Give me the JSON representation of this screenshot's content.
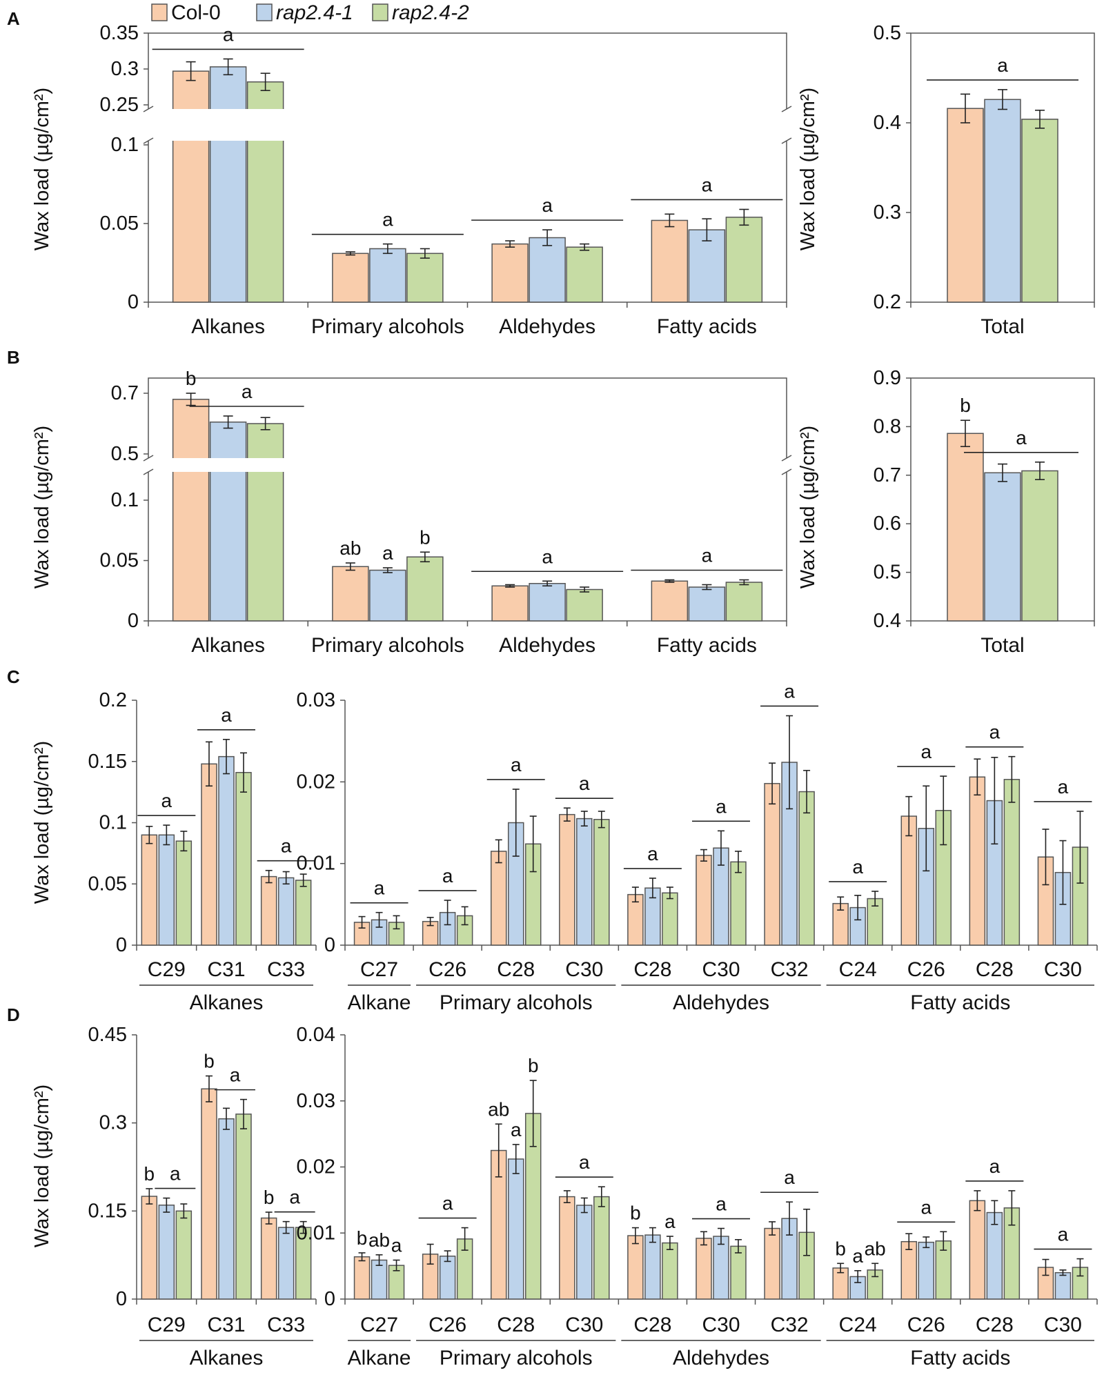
{
  "legend": [
    {
      "label": "Col-0",
      "italic": false,
      "color": "#F9CDAC"
    },
    {
      "label": "rap2.4-1",
      "italic": true,
      "color": "#BDD3EB"
    },
    {
      "label": "rap2.4-2",
      "italic": true,
      "color": "#C6DCA4"
    }
  ],
  "panel_labels": [
    "A",
    "B",
    "C",
    "D"
  ],
  "chart_data": [
    {
      "id": "A-classes",
      "panel": "A",
      "type": "bar",
      "broken_axis": true,
      "ylabel": "Wax load (µg/cm²)",
      "categories": [
        "Alkanes",
        "Primary  alcohols",
        "Aldehydes",
        "Fatty acids"
      ],
      "ylim_lower": [
        0,
        0.1
      ],
      "ylim_upper": [
        0.25,
        0.35
      ],
      "yticks": [
        0,
        0.05,
        0.1,
        0.25,
        0.3,
        0.35
      ],
      "series": [
        {
          "name": "Col-0",
          "values": [
            0.297,
            0.031,
            0.037,
            0.052
          ],
          "errors": [
            0.013,
            0.001,
            0.002,
            0.004
          ]
        },
        {
          "name": "rap2.4-1",
          "values": [
            0.303,
            0.034,
            0.041,
            0.046
          ],
          "errors": [
            0.011,
            0.003,
            0.005,
            0.007
          ]
        },
        {
          "name": "rap2.4-2",
          "values": [
            0.282,
            0.031,
            0.035,
            0.054
          ],
          "errors": [
            0.012,
            0.003,
            0.002,
            0.005
          ]
        }
      ],
      "annotations": [
        {
          "text": "a",
          "category": 0,
          "span": [
            0,
            2
          ]
        },
        {
          "text": "a",
          "category": 1,
          "span": [
            0,
            2
          ]
        },
        {
          "text": "a",
          "category": 2,
          "span": [
            0,
            2
          ]
        },
        {
          "text": "a",
          "category": 3,
          "span": [
            0,
            2
          ]
        }
      ]
    },
    {
      "id": "A-total",
      "panel": "A",
      "type": "bar",
      "ylabel": "Wax load (µg/cm²)",
      "categories": [
        "Total"
      ],
      "ylim": [
        0.2,
        0.5
      ],
      "yticks": [
        0.2,
        0.3,
        0.4,
        0.5
      ],
      "series": [
        {
          "name": "Col-0",
          "values": [
            0.416
          ],
          "errors": [
            0.016
          ]
        },
        {
          "name": "rap2.4-1",
          "values": [
            0.426
          ],
          "errors": [
            0.011
          ]
        },
        {
          "name": "rap2.4-2",
          "values": [
            0.404
          ],
          "errors": [
            0.01
          ]
        }
      ],
      "annotations": [
        {
          "text": "a",
          "category": 0,
          "span": [
            0,
            2
          ]
        }
      ]
    },
    {
      "id": "B-classes",
      "panel": "B",
      "type": "bar",
      "broken_axis": true,
      "ylabel": "Wax load (µg/cm²)",
      "categories": [
        "Alkanes",
        "Primary  alcohols",
        "Aldehydes",
        "Fatty acids"
      ],
      "ylim_lower": [
        0,
        0.12
      ],
      "ylim_upper": [
        0.5,
        0.75
      ],
      "yticks": [
        0,
        0.05,
        0.1,
        0.5,
        0.7
      ],
      "series": [
        {
          "name": "Col-0",
          "values": [
            0.68,
            0.045,
            0.029,
            0.033
          ],
          "errors": [
            0.02,
            0.003,
            0.001,
            0.001
          ]
        },
        {
          "name": "rap2.4-1",
          "values": [
            0.605,
            0.042,
            0.031,
            0.028
          ],
          "errors": [
            0.02,
            0.002,
            0.002,
            0.002
          ]
        },
        {
          "name": "rap2.4-2",
          "values": [
            0.6,
            0.053,
            0.026,
            0.032
          ],
          "errors": [
            0.02,
            0.004,
            0.002,
            0.002
          ]
        }
      ],
      "annotations": [
        {
          "text": "b",
          "category": 0,
          "span": [
            0,
            0
          ]
        },
        {
          "text": "a",
          "category": 0,
          "span": [
            1,
            2
          ]
        },
        {
          "text": "ab",
          "category": 1,
          "span": [
            0,
            0
          ]
        },
        {
          "text": "a",
          "category": 1,
          "span": [
            1,
            1
          ]
        },
        {
          "text": "b",
          "category": 1,
          "span": [
            2,
            2
          ]
        },
        {
          "text": "a",
          "category": 2,
          "span": [
            0,
            2
          ]
        },
        {
          "text": "a",
          "category": 3,
          "span": [
            0,
            2
          ]
        }
      ]
    },
    {
      "id": "B-total",
      "panel": "B",
      "type": "bar",
      "ylabel": "Wax load (µg/cm²)",
      "categories": [
        "Total"
      ],
      "ylim": [
        0.4,
        0.9
      ],
      "yticks": [
        0.4,
        0.5,
        0.6,
        0.7,
        0.8,
        0.9
      ],
      "series": [
        {
          "name": "Col-0",
          "values": [
            0.786
          ],
          "errors": [
            0.027
          ]
        },
        {
          "name": "rap2.4-1",
          "values": [
            0.705
          ],
          "errors": [
            0.018
          ]
        },
        {
          "name": "rap2.4-2",
          "values": [
            0.709
          ],
          "errors": [
            0.018
          ]
        }
      ],
      "annotations": [
        {
          "text": "b",
          "category": 0,
          "span": [
            0,
            0
          ]
        },
        {
          "text": "a",
          "category": 0,
          "span": [
            1,
            2
          ]
        }
      ]
    },
    {
      "id": "C-alkanes",
      "panel": "C",
      "type": "bar",
      "ylabel": "Wax load (µg/cm²)",
      "categories": [
        "C29",
        "C31",
        "C33"
      ],
      "ylim": [
        0,
        0.2
      ],
      "yticks": [
        0,
        0.05,
        0.1,
        0.15,
        0.2
      ],
      "groups": [
        {
          "label": "Alkanes",
          "from": 0,
          "to": 2
        }
      ],
      "series": [
        {
          "name": "Col-0",
          "values": [
            0.09,
            0.148,
            0.056
          ],
          "errors": [
            0.007,
            0.018,
            0.005
          ]
        },
        {
          "name": "rap2.4-1",
          "values": [
            0.09,
            0.154,
            0.055
          ],
          "errors": [
            0.008,
            0.014,
            0.005
          ]
        },
        {
          "name": "rap2.4-2",
          "values": [
            0.085,
            0.141,
            0.053
          ],
          "errors": [
            0.008,
            0.016,
            0.005
          ]
        }
      ],
      "annotations": [
        {
          "text": "a",
          "category": 0,
          "span": [
            0,
            2
          ]
        },
        {
          "text": "a",
          "category": 1,
          "span": [
            0,
            2
          ]
        },
        {
          "text": "a",
          "category": 2,
          "span": [
            0,
            2
          ]
        }
      ]
    },
    {
      "id": "C-others",
      "panel": "C",
      "type": "bar",
      "categories": [
        "C27",
        "C26",
        "C28",
        "C30",
        "C28",
        "C30",
        "C32",
        "C24",
        "C26",
        "C28",
        "C30"
      ],
      "ylim": [
        0,
        0.03
      ],
      "yticks": [
        0,
        0.01,
        0.02,
        0.03
      ],
      "groups": [
        {
          "label": "Alkane",
          "from": 0,
          "to": 0
        },
        {
          "label": "Primary alcohols",
          "from": 1,
          "to": 3
        },
        {
          "label": "Aldehydes",
          "from": 4,
          "to": 6
        },
        {
          "label": "Fatty acids",
          "from": 7,
          "to": 10
        }
      ],
      "series": [
        {
          "name": "Col-0",
          "values": [
            0.0028,
            0.0029,
            0.0115,
            0.016,
            0.0062,
            0.011,
            0.0198,
            0.0051,
            0.0158,
            0.0206,
            0.0108
          ],
          "errors": [
            0.0007,
            0.0005,
            0.0014,
            0.0008,
            0.0009,
            0.0007,
            0.0025,
            0.0008,
            0.0024,
            0.0022,
            0.0034
          ]
        },
        {
          "name": "rap2.4-1",
          "values": [
            0.0031,
            0.004,
            0.015,
            0.0155,
            0.007,
            0.0119,
            0.0224,
            0.0046,
            0.0143,
            0.0177,
            0.0089
          ],
          "errors": [
            0.0009,
            0.0015,
            0.0041,
            0.0009,
            0.0012,
            0.0021,
            0.0057,
            0.0015,
            0.0052,
            0.0053,
            0.0039
          ]
        },
        {
          "name": "rap2.4-2",
          "values": [
            0.0028,
            0.0036,
            0.0124,
            0.0154,
            0.0064,
            0.0102,
            0.0188,
            0.0057,
            0.0165,
            0.0203,
            0.012
          ],
          "errors": [
            0.0008,
            0.0011,
            0.0034,
            0.001,
            0.0007,
            0.0013,
            0.0026,
            0.0009,
            0.0042,
            0.0028,
            0.0044
          ]
        }
      ],
      "annotations": [
        {
          "text": "a",
          "category": 0,
          "span": [
            0,
            2
          ]
        },
        {
          "text": "a",
          "category": 1,
          "span": [
            0,
            2
          ]
        },
        {
          "text": "a",
          "category": 2,
          "span": [
            0,
            2
          ]
        },
        {
          "text": "a",
          "category": 3,
          "span": [
            0,
            2
          ]
        },
        {
          "text": "a",
          "category": 4,
          "span": [
            0,
            2
          ]
        },
        {
          "text": "a",
          "category": 5,
          "span": [
            0,
            2
          ]
        },
        {
          "text": "a",
          "category": 6,
          "span": [
            0,
            2
          ]
        },
        {
          "text": "a",
          "category": 7,
          "span": [
            0,
            2
          ]
        },
        {
          "text": "a",
          "category": 8,
          "span": [
            0,
            2
          ]
        },
        {
          "text": "a",
          "category": 9,
          "span": [
            0,
            2
          ]
        },
        {
          "text": "a",
          "category": 10,
          "span": [
            0,
            2
          ]
        }
      ]
    },
    {
      "id": "D-alkanes",
      "panel": "D",
      "type": "bar",
      "ylabel": "Wax load (µg/cm²)",
      "categories": [
        "C29",
        "C31",
        "C33"
      ],
      "ylim": [
        0,
        0.45
      ],
      "yticks": [
        0,
        0.15,
        0.3,
        0.45
      ],
      "groups": [
        {
          "label": "Alkanes",
          "from": 0,
          "to": 2
        }
      ],
      "series": [
        {
          "name": "Col-0",
          "values": [
            0.175,
            0.358,
            0.138
          ],
          "errors": [
            0.013,
            0.022,
            0.01
          ]
        },
        {
          "name": "rap2.4-1",
          "values": [
            0.16,
            0.307,
            0.122
          ],
          "errors": [
            0.012,
            0.018,
            0.01
          ]
        },
        {
          "name": "rap2.4-2",
          "values": [
            0.15,
            0.315,
            0.122
          ],
          "errors": [
            0.012,
            0.025,
            0.01
          ]
        }
      ],
      "annotations": [
        {
          "text": "b",
          "category": 0,
          "span": [
            0,
            0
          ]
        },
        {
          "text": "a",
          "category": 0,
          "span": [
            1,
            2
          ]
        },
        {
          "text": "b",
          "category": 1,
          "span": [
            0,
            0
          ]
        },
        {
          "text": "a",
          "category": 1,
          "span": [
            1,
            2
          ]
        },
        {
          "text": "b",
          "category": 2,
          "span": [
            0,
            0
          ]
        },
        {
          "text": "a",
          "category": 2,
          "span": [
            1,
            2
          ]
        }
      ]
    },
    {
      "id": "D-others",
      "panel": "D",
      "type": "bar",
      "categories": [
        "C27",
        "C26",
        "C28",
        "C30",
        "C28",
        "C30",
        "C32",
        "C24",
        "C26",
        "C28",
        "C30"
      ],
      "ylim": [
        0,
        0.04
      ],
      "yticks": [
        0,
        0.01,
        0.02,
        0.03,
        0.04
      ],
      "groups": [
        {
          "label": "Alkane",
          "from": 0,
          "to": 0
        },
        {
          "label": "Primary alcohols",
          "from": 1,
          "to": 3
        },
        {
          "label": "Aldehydes",
          "from": 4,
          "to": 6
        },
        {
          "label": "Fatty acids",
          "from": 7,
          "to": 10
        }
      ],
      "series": [
        {
          "name": "Col-0",
          "values": [
            0.0064,
            0.0068,
            0.0225,
            0.0155,
            0.0096,
            0.0092,
            0.0107,
            0.0047,
            0.0087,
            0.0149,
            0.0048
          ],
          "errors": [
            0.0006,
            0.0015,
            0.004,
            0.0009,
            0.0012,
            0.001,
            0.001,
            0.0007,
            0.0012,
            0.0015,
            0.0012
          ]
        },
        {
          "name": "rap2.4-1",
          "values": [
            0.0059,
            0.0065,
            0.0212,
            0.0142,
            0.0097,
            0.0095,
            0.0122,
            0.0034,
            0.0086,
            0.0131,
            0.004
          ],
          "errors": [
            0.0008,
            0.0008,
            0.0022,
            0.0011,
            0.0011,
            0.0012,
            0.0025,
            0.0009,
            0.0008,
            0.0018,
            0.0004
          ]
        },
        {
          "name": "rap2.4-2",
          "values": [
            0.0051,
            0.0091,
            0.0281,
            0.0155,
            0.0085,
            0.008,
            0.0101,
            0.0044,
            0.0088,
            0.0138,
            0.0048
          ],
          "errors": [
            0.0008,
            0.0017,
            0.005,
            0.0015,
            0.001,
            0.001,
            0.0035,
            0.001,
            0.0014,
            0.0026,
            0.0013
          ]
        }
      ],
      "annotations": [
        {
          "text": "b",
          "category": 0,
          "span": [
            0,
            0
          ]
        },
        {
          "text": "ab",
          "category": 0,
          "span": [
            1,
            1
          ]
        },
        {
          "text": "a",
          "category": 0,
          "span": [
            2,
            2
          ]
        },
        {
          "text": "a",
          "category": 1,
          "span": [
            0,
            2
          ]
        },
        {
          "text": "ab",
          "category": 2,
          "span": [
            0,
            0
          ]
        },
        {
          "text": "a",
          "category": 2,
          "span": [
            1,
            1
          ]
        },
        {
          "text": "b",
          "category": 2,
          "span": [
            2,
            2
          ]
        },
        {
          "text": "a",
          "category": 3,
          "span": [
            0,
            2
          ]
        },
        {
          "text": "b",
          "category": 4,
          "span": [
            0,
            0
          ]
        },
        {
          "text": "a",
          "category": 4,
          "span": [
            2,
            2
          ]
        },
        {
          "text": "a",
          "category": 5,
          "span": [
            0,
            2
          ]
        },
        {
          "text": "a",
          "category": 6,
          "span": [
            0,
            2
          ]
        },
        {
          "text": "b",
          "category": 7,
          "span": [
            0,
            0
          ]
        },
        {
          "text": "a",
          "category": 7,
          "span": [
            1,
            1
          ]
        },
        {
          "text": "ab",
          "category": 7,
          "span": [
            2,
            2
          ]
        },
        {
          "text": "a",
          "category": 8,
          "span": [
            0,
            2
          ]
        },
        {
          "text": "a",
          "category": 9,
          "span": [
            0,
            2
          ]
        },
        {
          "text": "a",
          "category": 10,
          "span": [
            0,
            2
          ]
        }
      ]
    }
  ]
}
